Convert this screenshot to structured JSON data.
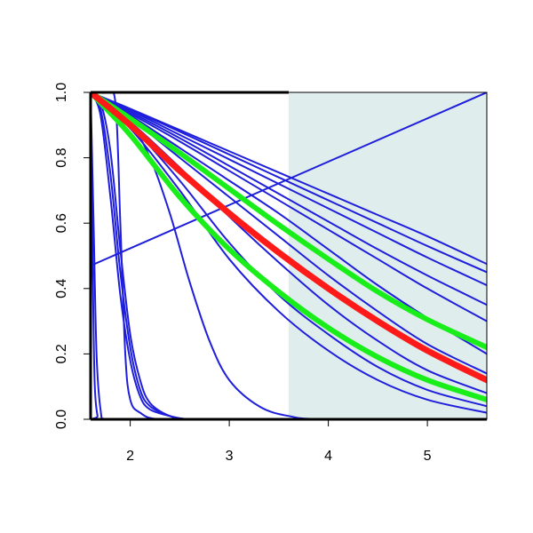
{
  "chart_data": {
    "type": "line",
    "title": "",
    "xlabel": "",
    "ylabel": "",
    "xlim": [
      1.6,
      5.6
    ],
    "ylim": [
      0.0,
      1.0
    ],
    "x_ticks": [
      2,
      3,
      4,
      5
    ],
    "x_tick_labels": [
      "2",
      "3",
      "4",
      "5"
    ],
    "y_ticks": [
      0.0,
      0.2,
      0.4,
      0.6,
      0.8,
      1.0
    ],
    "y_tick_labels": [
      "0.0",
      "0.2",
      "0.4",
      "0.6",
      "0.8",
      "1.0"
    ],
    "grid": false,
    "shaded_region": {
      "x": [
        3.6,
        5.6
      ],
      "color": "#e0eded"
    },
    "colors": {
      "background_curves": "#1f1fdb",
      "highlight_red": "#ff1a1a",
      "highlight_green": "#1aee1a",
      "shade": "#e0eded"
    },
    "series": [
      {
        "style": "blue",
        "x": [
          1.6,
          5.6
        ],
        "y": [
          0.47,
          1.0
        ]
      },
      {
        "style": "blue",
        "x": [
          1.6,
          2.0,
          2.5,
          3.0,
          3.5,
          4.0,
          4.5,
          5.0,
          5.6
        ],
        "y": [
          1.0,
          0.95,
          0.885,
          0.82,
          0.755,
          0.69,
          0.625,
          0.56,
          0.475
        ]
      },
      {
        "style": "blue",
        "x": [
          1.6,
          2.0,
          2.5,
          3.0,
          3.5,
          4.0,
          4.5,
          5.0,
          5.6
        ],
        "y": [
          1.0,
          0.948,
          0.88,
          0.81,
          0.74,
          0.67,
          0.6,
          0.53,
          0.45
        ]
      },
      {
        "style": "blue",
        "x": [
          1.6,
          2.0,
          2.5,
          3.0,
          3.5,
          4.0,
          4.5,
          5.0,
          5.6
        ],
        "y": [
          1.0,
          0.945,
          0.87,
          0.795,
          0.72,
          0.645,
          0.57,
          0.495,
          0.41
        ]
      },
      {
        "style": "blue",
        "x": [
          1.6,
          2.0,
          2.5,
          3.0,
          3.5,
          4.0,
          4.5,
          5.0,
          5.6
        ],
        "y": [
          1.0,
          0.94,
          0.86,
          0.775,
          0.69,
          0.605,
          0.52,
          0.44,
          0.35
        ]
      },
      {
        "style": "blue",
        "x": [
          1.6,
          2.0,
          2.5,
          3.0,
          3.5,
          4.0,
          4.5,
          5.0,
          5.6
        ],
        "y": [
          1.0,
          0.935,
          0.85,
          0.76,
          0.67,
          0.58,
          0.49,
          0.4,
          0.3
        ]
      },
      {
        "style": "blue",
        "x": [
          1.6,
          2.0,
          2.5,
          3.0,
          3.5,
          4.0,
          4.5,
          5.0,
          5.6
        ],
        "y": [
          1.0,
          0.93,
          0.83,
          0.73,
          0.63,
          0.52,
          0.41,
          0.31,
          0.2
        ]
      },
      {
        "style": "blue",
        "x": [
          1.6,
          2.0,
          2.5,
          3.0,
          3.5,
          4.0,
          4.5,
          5.0,
          5.6
        ],
        "y": [
          1.0,
          0.92,
          0.8,
          0.68,
          0.56,
          0.44,
          0.33,
          0.23,
          0.14
        ]
      },
      {
        "style": "blue",
        "x": [
          1.6,
          2.0,
          2.5,
          3.0,
          3.5,
          4.0,
          4.5,
          5.0,
          5.6
        ],
        "y": [
          1.0,
          0.91,
          0.77,
          0.62,
          0.48,
          0.35,
          0.24,
          0.15,
          0.08
        ]
      },
      {
        "style": "blue",
        "x": [
          1.6,
          2.0,
          2.5,
          3.0,
          3.5,
          4.0,
          4.5,
          5.0,
          5.6
        ],
        "y": [
          1.0,
          0.9,
          0.73,
          0.54,
          0.38,
          0.26,
          0.16,
          0.09,
          0.04
        ]
      },
      {
        "style": "blue",
        "x": [
          1.6,
          2.0,
          2.5,
          3.0,
          3.5,
          4.0,
          4.5,
          5.0,
          5.6
        ],
        "y": [
          1.0,
          0.89,
          0.7,
          0.49,
          0.33,
          0.21,
          0.12,
          0.06,
          0.02
        ]
      },
      {
        "style": "blue",
        "x": [
          1.6,
          2.0,
          2.2,
          2.4,
          2.6,
          2.8,
          3.0,
          3.3,
          3.6,
          4.0,
          5.6
        ],
        "y": [
          1.0,
          0.9,
          0.8,
          0.63,
          0.42,
          0.24,
          0.12,
          0.04,
          0.01,
          0.0,
          0.0
        ]
      },
      {
        "style": "blue",
        "x": [
          1.6,
          1.7,
          1.8,
          1.9,
          2.0,
          2.1,
          2.2,
          2.4,
          2.6,
          3.0,
          5.6
        ],
        "y": [
          1.0,
          0.95,
          0.75,
          0.45,
          0.22,
          0.09,
          0.04,
          0.01,
          0.0,
          0.0,
          0.0
        ]
      },
      {
        "style": "blue",
        "x": [
          1.6,
          1.7,
          1.8,
          1.9,
          2.0,
          2.1,
          2.2,
          2.4,
          2.6,
          3.0,
          5.6
        ],
        "y": [
          1.0,
          0.97,
          0.82,
          0.52,
          0.26,
          0.12,
          0.05,
          0.01,
          0.0,
          0.0,
          0.0
        ]
      },
      {
        "style": "blue",
        "x": [
          1.6,
          1.7,
          1.8,
          1.9,
          2.0,
          2.1,
          2.2,
          2.4,
          2.6,
          3.0,
          5.6
        ],
        "y": [
          1.0,
          0.93,
          0.68,
          0.38,
          0.18,
          0.07,
          0.03,
          0.01,
          0.0,
          0.0,
          0.0
        ]
      },
      {
        "style": "blue",
        "x": [
          1.6,
          1.65,
          1.75,
          1.85,
          1.9,
          1.95,
          2.0,
          2.1,
          2.3,
          3.0,
          5.6
        ],
        "y": [
          1.0,
          1.0,
          1.0,
          0.97,
          0.6,
          0.2,
          0.06,
          0.02,
          0.0,
          0.0,
          0.0
        ]
      },
      {
        "style": "blue",
        "x": [
          1.6,
          1.63,
          1.66,
          1.7,
          1.75,
          2.0,
          5.6
        ],
        "y": [
          1.0,
          0.6,
          0.2,
          0.03,
          0.0,
          0.0,
          0.0
        ]
      },
      {
        "style": "blue",
        "x": [
          1.6,
          1.62,
          1.64,
          1.67,
          1.7,
          5.6
        ],
        "y": [
          1.0,
          0.5,
          0.12,
          0.01,
          0.0,
          0.0
        ]
      },
      {
        "style": "green",
        "x": [
          1.6,
          2.0,
          2.5,
          3.0,
          3.5,
          4.0,
          4.5,
          5.0,
          5.6
        ],
        "y": [
          1.0,
          0.92,
          0.815,
          0.705,
          0.595,
          0.49,
          0.39,
          0.305,
          0.22
        ]
      },
      {
        "style": "green",
        "x": [
          1.6,
          2.0,
          2.5,
          3.0,
          3.5,
          4.0,
          4.5,
          5.0,
          5.6
        ],
        "y": [
          1.0,
          0.87,
          0.68,
          0.52,
          0.39,
          0.28,
          0.19,
          0.12,
          0.06
        ]
      },
      {
        "style": "red",
        "x": [
          1.6,
          2.0,
          2.5,
          3.0,
          3.5,
          4.0,
          4.5,
          5.0,
          5.6
        ],
        "y": [
          1.0,
          0.9,
          0.76,
          0.63,
          0.51,
          0.4,
          0.3,
          0.21,
          0.12
        ]
      }
    ]
  }
}
